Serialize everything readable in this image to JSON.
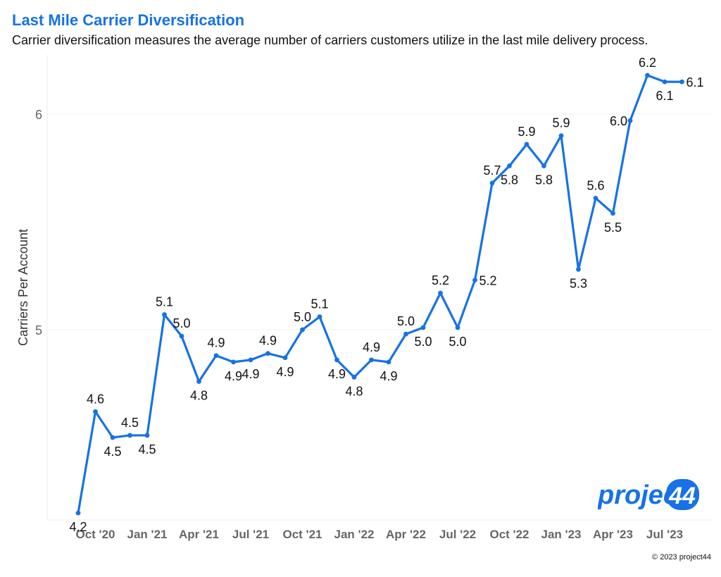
{
  "title": "Last Mile Carrier Diversification",
  "subtitle": "Carrier diversification measures the average number of carriers customers utilize in the last mile delivery process.",
  "footer": "© 2023 project44",
  "logo": {
    "text_prefix": "project",
    "text_badge": "44"
  },
  "colors": {
    "accent": "#1672e6",
    "text": "#111111",
    "grid": "#eeeeee",
    "axis_text": "#666666"
  },
  "chart_data": {
    "type": "line",
    "ylabel": "Carriers Per Account",
    "xlabel": "",
    "ylim": [
      4.1,
      6.25
    ],
    "yticks": [
      5,
      6
    ],
    "grid": true,
    "x": [
      "Sep '20",
      "Oct '20",
      "Nov '20",
      "Dec '20",
      "Jan '21",
      "Feb '21",
      "Mar '21",
      "Apr '21",
      "May '21",
      "Jun '21",
      "Jul '21",
      "Aug '21",
      "Sep '21",
      "Oct '21",
      "Nov '21",
      "Dec '21",
      "Jan '22",
      "Feb '22",
      "Mar '22",
      "Apr '22",
      "May '22",
      "Jun '22",
      "Jul '22",
      "Aug '22",
      "Sep '22",
      "Oct '22",
      "Nov '22",
      "Dec '22",
      "Jan '23",
      "Feb '23",
      "Mar '23",
      "Apr '23",
      "May '23",
      "Jun '23",
      "Jul '23",
      "Aug '23"
    ],
    "xtick_labels": [
      {
        "index": 1,
        "label": "Oct '20"
      },
      {
        "index": 4,
        "label": "Jan '21"
      },
      {
        "index": 7,
        "label": "Apr '21"
      },
      {
        "index": 10,
        "label": "Jul '21"
      },
      {
        "index": 13,
        "label": "Oct '21"
      },
      {
        "index": 16,
        "label": "Jan '22"
      },
      {
        "index": 19,
        "label": "Apr '22"
      },
      {
        "index": 22,
        "label": "Jul '22"
      },
      {
        "index": 25,
        "label": "Oct '22"
      },
      {
        "index": 28,
        "label": "Jan '23"
      },
      {
        "index": 31,
        "label": "Apr '23"
      },
      {
        "index": 34,
        "label": "Jul '23"
      }
    ],
    "series": [
      {
        "values": [
          4.15,
          4.62,
          4.5,
          4.51,
          4.51,
          5.07,
          4.97,
          4.76,
          4.88,
          4.85,
          4.86,
          4.89,
          4.87,
          5.0,
          5.06,
          4.86,
          4.78,
          4.86,
          4.85,
          4.98,
          5.01,
          5.17,
          5.01,
          5.23,
          5.68,
          5.76,
          5.86,
          5.76,
          5.9,
          5.28,
          5.61,
          5.54,
          5.97,
          6.18,
          6.15,
          6.15
        ],
        "labels": [
          "4.2",
          "4.6",
          "4.5",
          "4.5",
          "4.5",
          "5.1",
          "5.0",
          "4.8",
          "4.9",
          "4.9",
          "4.9",
          "4.9",
          "4.9",
          "5.0",
          "5.1",
          "4.9",
          "4.8",
          "4.9",
          "4.9",
          "5.0",
          "5.0",
          "5.2",
          "5.0",
          "5.2",
          "5.7",
          "5.8",
          "5.9",
          "5.8",
          "5.9",
          "5.3",
          "5.6",
          "5.5",
          "6.0",
          "6.2",
          "6.1",
          "6.1"
        ],
        "label_positions": [
          "below",
          "above",
          "below",
          "above",
          "below",
          "above",
          "above",
          "below",
          "above",
          "below",
          "below",
          "above",
          "below",
          "above",
          "above",
          "below",
          "below",
          "above",
          "below",
          "above",
          "below",
          "above",
          "below",
          "right",
          "above",
          "below",
          "above",
          "below",
          "above",
          "below",
          "above",
          "below",
          "left",
          "above",
          "below",
          "right"
        ]
      }
    ]
  }
}
